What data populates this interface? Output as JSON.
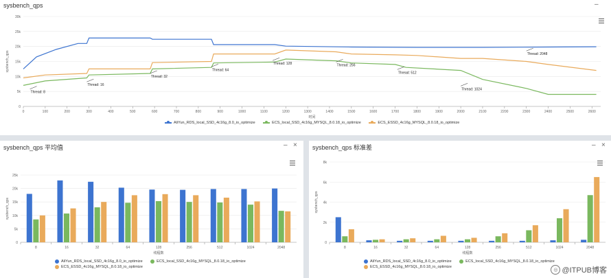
{
  "colors": {
    "aliyun": "#3d74d0",
    "ecs_local": "#7ab85e",
    "ecs_essd": "#e9aa5b"
  },
  "panels": {
    "top": {
      "title": "sysbench_qps",
      "minimize": "–"
    },
    "bottom_left": {
      "title": "sysbench_qps 平均值",
      "minimize": "–",
      "close": "×"
    },
    "bottom_right": {
      "title": "sysbench_qps 标准差",
      "minimize": "–",
      "close": "×"
    }
  },
  "legend": [
    "AliYun_RDS_local_SSD_4c16g_8.0_io_optimize",
    "ECS_local_SSD_4c16g_MYSQL_8.0.18_io_optimize",
    "ECS_ESSD_4c16g_MYSQL_8.0.18_io_optimize"
  ],
  "watermark": {
    "logo": "◎",
    "text": "@ITPUB博客"
  },
  "chart_data": [
    {
      "type": "line",
      "title": "",
      "xlabel": "时间",
      "ylabel": "sysbench_qps",
      "xlim": [
        0,
        2640
      ],
      "ylim": [
        0,
        30000
      ],
      "xticks": [
        0,
        100,
        200,
        300,
        400,
        500,
        600,
        700,
        800,
        900,
        1000,
        1100,
        1200,
        1300,
        1400,
        1500,
        1600,
        1700,
        1800,
        1900,
        2000,
        2100,
        2200,
        2300,
        2400,
        2500,
        2600
      ],
      "yticks": [
        0,
        5000,
        10000,
        15000,
        20000,
        25000,
        30000
      ],
      "ytick_labels": [
        "0",
        "5k",
        "10k",
        "15k",
        "20k",
        "25k",
        "30k"
      ],
      "annotations": [
        {
          "text": "Thread: 8",
          "x": 30,
          "y": 5800
        },
        {
          "text": "Thread: 16",
          "x": 290,
          "y": 8200
        },
        {
          "text": "Thread: 32",
          "x": 580,
          "y": 11000
        },
        {
          "text": "Thread: 64",
          "x": 860,
          "y": 13200
        },
        {
          "text": "Thread: 128",
          "x": 1140,
          "y": 15300
        },
        {
          "text": "Thread: 256",
          "x": 1430,
          "y": 14800
        },
        {
          "text": "Thread: 512",
          "x": 1710,
          "y": 12300
        },
        {
          "text": "Thread: 1024",
          "x": 2000,
          "y": 6800
        },
        {
          "text": "Thread: 2048",
          "x": 2300,
          "y": 18500
        }
      ],
      "series": [
        {
          "name": "AliYun_RDS_local_SSD_4c16g_8.0_io_optimize",
          "x": [
            0,
            60,
            150,
            250,
            290,
            300,
            580,
            590,
            860,
            870,
            1150,
            1200,
            1500,
            1800,
            2100,
            2400,
            2620
          ],
          "y": [
            12500,
            16500,
            19000,
            21000,
            21000,
            22800,
            22800,
            22400,
            22400,
            20600,
            20600,
            20100,
            19800,
            19700,
            19700,
            19800,
            19900
          ]
        },
        {
          "name": "ECS_local_SSD_4c16g_MYSQL_8.0.18_io_optimize",
          "x": [
            0,
            100,
            290,
            300,
            580,
            590,
            860,
            870,
            1150,
            1200,
            1430,
            1500,
            1700,
            1750,
            2000,
            2100,
            2300,
            2400,
            2620
          ],
          "y": [
            7000,
            8500,
            9500,
            10500,
            11000,
            12500,
            13000,
            14500,
            14800,
            15800,
            15200,
            14500,
            14000,
            13000,
            12000,
            9000,
            6000,
            4000,
            4000
          ]
        },
        {
          "name": "ECS_ESSD_4c16g_MYSQL_8.0.18_io_optimize",
          "x": [
            0,
            100,
            290,
            300,
            580,
            590,
            860,
            870,
            1150,
            1200,
            1430,
            1500,
            1700,
            1800,
            2000,
            2100,
            2300,
            2400,
            2620
          ],
          "y": [
            9500,
            10500,
            11000,
            12500,
            12500,
            14600,
            15000,
            17500,
            17500,
            18800,
            18200,
            17500,
            17200,
            17000,
            16000,
            16000,
            15000,
            14000,
            12000
          ]
        }
      ]
    },
    {
      "type": "bar",
      "title": "sysbench_qps 平均值",
      "xlabel": "线程数",
      "ylabel": "sysbench_qps",
      "ylim": [
        0,
        25000
      ],
      "yticks": [
        0,
        5000,
        10000,
        15000,
        20000,
        25000
      ],
      "ytick_labels": [
        "0",
        "5k",
        "10k",
        "15k",
        "20k",
        "25k"
      ],
      "categories": [
        "8",
        "16",
        "32",
        "64",
        "128",
        "256",
        "512",
        "1024",
        "2048"
      ],
      "series": [
        {
          "name": "AliYun_RDS_local_SSD_4c16g_8.0_io_optimize",
          "values": [
            18000,
            23000,
            22500,
            20300,
            19600,
            19500,
            19800,
            19800,
            20000
          ]
        },
        {
          "name": "ECS_local_SSD_4c16g_MYSQL_8.0.18_io_optimize",
          "values": [
            8500,
            10700,
            13000,
            14700,
            15300,
            15000,
            14800,
            14000,
            11700
          ]
        },
        {
          "name": "ECS_ESSD_4c16g_MYSQL_8.0.18_io_optimize",
          "values": [
            10000,
            12600,
            15000,
            17500,
            17900,
            17500,
            16600,
            15200,
            11500
          ]
        }
      ]
    },
    {
      "type": "bar",
      "title": "sysbench_qps 标准差",
      "xlabel": "线程数",
      "ylabel": "sysbench_qps",
      "ylim": [
        0,
        8000
      ],
      "yticks": [
        0,
        2000,
        4000,
        6000,
        8000
      ],
      "ytick_labels": [
        "0",
        "2k",
        "4k",
        "6k",
        "8k"
      ],
      "categories": [
        "8",
        "16",
        "32",
        "64",
        "128",
        "256",
        "512",
        "1024",
        "2048"
      ],
      "series": [
        {
          "name": "AliYun_RDS_local_SSD_4c16g_8.0_io_optimize",
          "values": [
            2500,
            200,
            150,
            150,
            150,
            150,
            150,
            200,
            250
          ]
        },
        {
          "name": "ECS_local_SSD_4c16g_MYSQL_8.0.18_io_optimize",
          "values": [
            600,
            250,
            300,
            300,
            300,
            600,
            1200,
            2400,
            4700
          ]
        },
        {
          "name": "ECS_ESSD_4c16g_MYSQL_8.0.18_io_optimize",
          "values": [
            1300,
            300,
            400,
            650,
            450,
            900,
            1700,
            3300,
            6500
          ]
        }
      ]
    }
  ]
}
